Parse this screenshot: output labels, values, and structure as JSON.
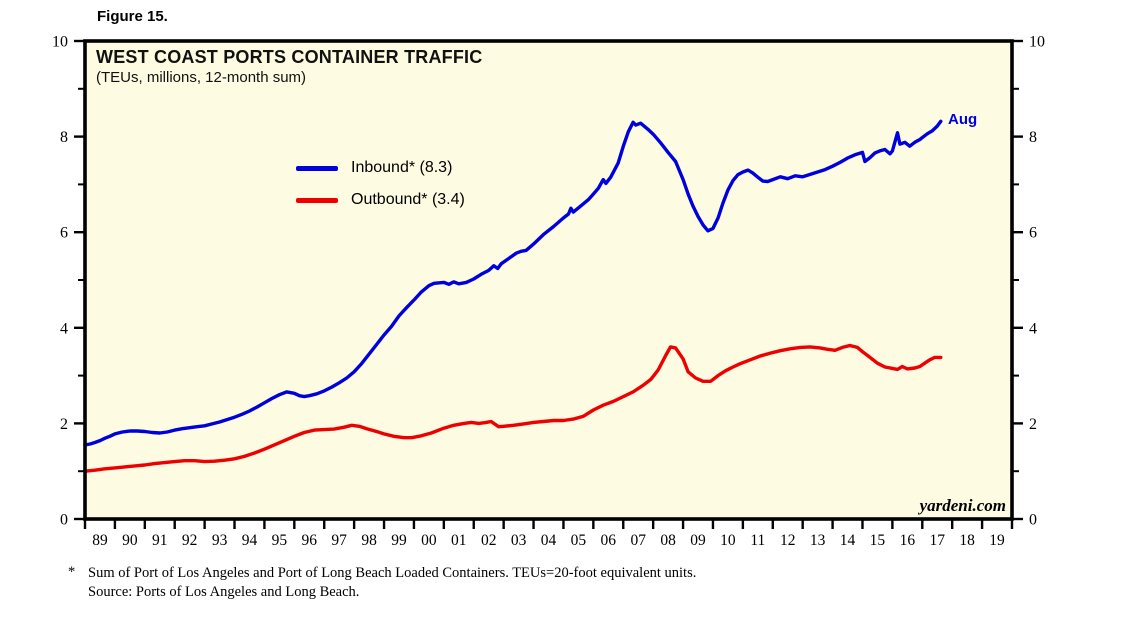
{
  "figure_label": "Figure 15.",
  "chart": {
    "title": "WEST COAST PORTS CONTAINER TRAFFIC",
    "subtitle": "(TEUs, millions, 12-month sum)",
    "last_point_label": "Aug",
    "watermark": "yardeni.com",
    "plot_bg_color": "#FDFCE2",
    "border_color": "#000000"
  },
  "legend": [
    {
      "label": "Inbound* (8.3)",
      "color": "#0000DD"
    },
    {
      "label": "Outbound* (3.4)",
      "color": "#EE0000"
    }
  ],
  "footnote": {
    "marker": "*",
    "line1": "Sum of Port of Los Angeles and Port of Long Beach Loaded Containers. TEUs=20-foot equivalent units.",
    "line2": "Source: Ports of Los Angeles and Long Beach."
  },
  "chart_data": {
    "type": "line",
    "title": "WEST COAST PORTS CONTAINER TRAFFIC",
    "subtitle": "(TEUs, millions, 12-month sum)",
    "xlabel": "",
    "ylabel": "TEUs, millions, 12-month sum",
    "xlim": [
      1989,
      2020
    ],
    "ylim": [
      0,
      10
    ],
    "grid": false,
    "legend_position": "upper-left-inside",
    "y_major_ticks": [
      0,
      2,
      4,
      6,
      8,
      10
    ],
    "y_minor_ticks": [
      1,
      3,
      5,
      7,
      9
    ],
    "x_ticklabels": [
      "89",
      "90",
      "91",
      "92",
      "93",
      "94",
      "95",
      "96",
      "97",
      "98",
      "99",
      "00",
      "01",
      "02",
      "03",
      "04",
      "05",
      "06",
      "07",
      "08",
      "09",
      "10",
      "11",
      "12",
      "13",
      "14",
      "15",
      "16",
      "17",
      "18",
      "19"
    ],
    "series": [
      {
        "name": "Inbound*",
        "current_value": 8.3,
        "current_period": "Aug 2017",
        "color": "#0000DD",
        "points": [
          [
            1989.0,
            1.55
          ],
          [
            1989.17,
            1.57
          ],
          [
            1989.33,
            1.6
          ],
          [
            1989.5,
            1.64
          ],
          [
            1989.67,
            1.69
          ],
          [
            1989.83,
            1.73
          ],
          [
            1990.0,
            1.78
          ],
          [
            1990.25,
            1.82
          ],
          [
            1990.5,
            1.84
          ],
          [
            1990.75,
            1.84
          ],
          [
            1991.0,
            1.83
          ],
          [
            1991.25,
            1.81
          ],
          [
            1991.5,
            1.8
          ],
          [
            1991.75,
            1.82
          ],
          [
            1992.0,
            1.86
          ],
          [
            1992.25,
            1.89
          ],
          [
            1992.5,
            1.91
          ],
          [
            1992.75,
            1.93
          ],
          [
            1993.0,
            1.95
          ],
          [
            1993.25,
            1.99
          ],
          [
            1993.5,
            2.03
          ],
          [
            1993.75,
            2.08
          ],
          [
            1994.0,
            2.13
          ],
          [
            1994.25,
            2.19
          ],
          [
            1994.5,
            2.26
          ],
          [
            1994.75,
            2.34
          ],
          [
            1995.0,
            2.43
          ],
          [
            1995.25,
            2.52
          ],
          [
            1995.5,
            2.6
          ],
          [
            1995.75,
            2.66
          ],
          [
            1996.0,
            2.63
          ],
          [
            1996.17,
            2.58
          ],
          [
            1996.33,
            2.56
          ],
          [
            1996.5,
            2.58
          ],
          [
            1996.75,
            2.62
          ],
          [
            1997.0,
            2.68
          ],
          [
            1997.25,
            2.76
          ],
          [
            1997.5,
            2.85
          ],
          [
            1997.75,
            2.95
          ],
          [
            1998.0,
            3.08
          ],
          [
            1998.25,
            3.25
          ],
          [
            1998.5,
            3.45
          ],
          [
            1998.75,
            3.65
          ],
          [
            1999.0,
            3.85
          ],
          [
            1999.25,
            4.03
          ],
          [
            1999.5,
            4.25
          ],
          [
            1999.75,
            4.42
          ],
          [
            2000.0,
            4.58
          ],
          [
            2000.25,
            4.75
          ],
          [
            2000.5,
            4.88
          ],
          [
            2000.67,
            4.93
          ],
          [
            2001.0,
            4.95
          ],
          [
            2001.17,
            4.91
          ],
          [
            2001.33,
            4.96
          ],
          [
            2001.5,
            4.92
          ],
          [
            2001.75,
            4.95
          ],
          [
            2002.0,
            5.02
          ],
          [
            2002.25,
            5.12
          ],
          [
            2002.5,
            5.2
          ],
          [
            2002.67,
            5.3
          ],
          [
            2002.8,
            5.24
          ],
          [
            2002.92,
            5.34
          ],
          [
            2003.17,
            5.45
          ],
          [
            2003.42,
            5.56
          ],
          [
            2003.58,
            5.6
          ],
          [
            2003.75,
            5.62
          ],
          [
            2004.0,
            5.75
          ],
          [
            2004.33,
            5.95
          ],
          [
            2004.67,
            6.12
          ],
          [
            2005.0,
            6.3
          ],
          [
            2005.17,
            6.38
          ],
          [
            2005.25,
            6.5
          ],
          [
            2005.33,
            6.42
          ],
          [
            2005.58,
            6.55
          ],
          [
            2005.83,
            6.68
          ],
          [
            2006.0,
            6.8
          ],
          [
            2006.17,
            6.92
          ],
          [
            2006.33,
            7.1
          ],
          [
            2006.42,
            7.02
          ],
          [
            2006.58,
            7.15
          ],
          [
            2006.83,
            7.45
          ],
          [
            2007.0,
            7.8
          ],
          [
            2007.17,
            8.1
          ],
          [
            2007.33,
            8.3
          ],
          [
            2007.42,
            8.24
          ],
          [
            2007.58,
            8.28
          ],
          [
            2007.83,
            8.15
          ],
          [
            2008.0,
            8.05
          ],
          [
            2008.25,
            7.87
          ],
          [
            2008.5,
            7.67
          ],
          [
            2008.75,
            7.48
          ],
          [
            2009.0,
            7.1
          ],
          [
            2009.17,
            6.8
          ],
          [
            2009.33,
            6.55
          ],
          [
            2009.5,
            6.33
          ],
          [
            2009.67,
            6.15
          ],
          [
            2009.83,
            6.03
          ],
          [
            2010.0,
            6.08
          ],
          [
            2010.17,
            6.3
          ],
          [
            2010.33,
            6.6
          ],
          [
            2010.5,
            6.88
          ],
          [
            2010.67,
            7.08
          ],
          [
            2010.83,
            7.2
          ],
          [
            2011.0,
            7.26
          ],
          [
            2011.17,
            7.3
          ],
          [
            2011.33,
            7.24
          ],
          [
            2011.5,
            7.15
          ],
          [
            2011.67,
            7.07
          ],
          [
            2011.83,
            7.06
          ],
          [
            2012.0,
            7.1
          ],
          [
            2012.25,
            7.16
          ],
          [
            2012.5,
            7.12
          ],
          [
            2012.75,
            7.18
          ],
          [
            2013.0,
            7.16
          ],
          [
            2013.25,
            7.21
          ],
          [
            2013.5,
            7.26
          ],
          [
            2013.75,
            7.31
          ],
          [
            2014.0,
            7.38
          ],
          [
            2014.25,
            7.46
          ],
          [
            2014.5,
            7.55
          ],
          [
            2014.75,
            7.62
          ],
          [
            2015.0,
            7.67
          ],
          [
            2015.08,
            7.48
          ],
          [
            2015.25,
            7.56
          ],
          [
            2015.42,
            7.66
          ],
          [
            2015.58,
            7.7
          ],
          [
            2015.75,
            7.73
          ],
          [
            2015.92,
            7.64
          ],
          [
            2016.0,
            7.7
          ],
          [
            2016.17,
            8.08
          ],
          [
            2016.25,
            7.84
          ],
          [
            2016.42,
            7.88
          ],
          [
            2016.58,
            7.8
          ],
          [
            2016.75,
            7.88
          ],
          [
            2016.92,
            7.94
          ],
          [
            2017.0,
            7.98
          ],
          [
            2017.17,
            8.06
          ],
          [
            2017.33,
            8.12
          ],
          [
            2017.5,
            8.22
          ],
          [
            2017.62,
            8.32
          ]
        ]
      },
      {
        "name": "Outbound*",
        "current_value": 3.4,
        "current_period": "Aug 2017",
        "color": "#EE0000",
        "points": [
          [
            1989.0,
            1.0
          ],
          [
            1989.33,
            1.02
          ],
          [
            1989.67,
            1.05
          ],
          [
            1990.0,
            1.07
          ],
          [
            1990.33,
            1.09
          ],
          [
            1990.67,
            1.11
          ],
          [
            1991.0,
            1.13
          ],
          [
            1991.33,
            1.16
          ],
          [
            1991.67,
            1.18
          ],
          [
            1992.0,
            1.2
          ],
          [
            1992.33,
            1.22
          ],
          [
            1992.67,
            1.22
          ],
          [
            1993.0,
            1.2
          ],
          [
            1993.33,
            1.21
          ],
          [
            1993.67,
            1.23
          ],
          [
            1994.0,
            1.26
          ],
          [
            1994.33,
            1.31
          ],
          [
            1994.67,
            1.38
          ],
          [
            1995.0,
            1.46
          ],
          [
            1995.33,
            1.55
          ],
          [
            1995.67,
            1.64
          ],
          [
            1996.0,
            1.73
          ],
          [
            1996.33,
            1.81
          ],
          [
            1996.67,
            1.86
          ],
          [
            1997.0,
            1.87
          ],
          [
            1997.33,
            1.88
          ],
          [
            1997.67,
            1.92
          ],
          [
            1997.92,
            1.96
          ],
          [
            1998.17,
            1.94
          ],
          [
            1998.42,
            1.89
          ],
          [
            1998.75,
            1.83
          ],
          [
            1999.0,
            1.78
          ],
          [
            1999.33,
            1.73
          ],
          [
            1999.67,
            1.7
          ],
          [
            1999.92,
            1.7
          ],
          [
            2000.25,
            1.74
          ],
          [
            2000.58,
            1.8
          ],
          [
            2001.0,
            1.9
          ],
          [
            2001.33,
            1.96
          ],
          [
            2001.67,
            2.0
          ],
          [
            2001.92,
            2.02
          ],
          [
            2002.17,
            2.0
          ],
          [
            2002.42,
            2.02
          ],
          [
            2002.58,
            2.04
          ],
          [
            2002.83,
            1.93
          ],
          [
            2003.0,
            1.94
          ],
          [
            2003.33,
            1.96
          ],
          [
            2003.67,
            1.99
          ],
          [
            2004.0,
            2.02
          ],
          [
            2004.33,
            2.04
          ],
          [
            2004.67,
            2.06
          ],
          [
            2005.0,
            2.06
          ],
          [
            2005.33,
            2.09
          ],
          [
            2005.67,
            2.15
          ],
          [
            2006.0,
            2.28
          ],
          [
            2006.33,
            2.38
          ],
          [
            2006.67,
            2.46
          ],
          [
            2007.0,
            2.56
          ],
          [
            2007.33,
            2.66
          ],
          [
            2007.67,
            2.8
          ],
          [
            2007.92,
            2.92
          ],
          [
            2008.17,
            3.12
          ],
          [
            2008.42,
            3.42
          ],
          [
            2008.58,
            3.6
          ],
          [
            2008.75,
            3.58
          ],
          [
            2009.0,
            3.35
          ],
          [
            2009.17,
            3.08
          ],
          [
            2009.42,
            2.95
          ],
          [
            2009.67,
            2.88
          ],
          [
            2009.92,
            2.88
          ],
          [
            2010.17,
            3.0
          ],
          [
            2010.42,
            3.1
          ],
          [
            2010.67,
            3.18
          ],
          [
            2010.92,
            3.25
          ],
          [
            2011.25,
            3.33
          ],
          [
            2011.58,
            3.41
          ],
          [
            2011.92,
            3.47
          ],
          [
            2012.25,
            3.52
          ],
          [
            2012.58,
            3.56
          ],
          [
            2012.92,
            3.59
          ],
          [
            2013.25,
            3.6
          ],
          [
            2013.58,
            3.58
          ],
          [
            2013.83,
            3.55
          ],
          [
            2014.08,
            3.53
          ],
          [
            2014.33,
            3.59
          ],
          [
            2014.58,
            3.63
          ],
          [
            2014.83,
            3.59
          ],
          [
            2015.0,
            3.5
          ],
          [
            2015.25,
            3.38
          ],
          [
            2015.5,
            3.26
          ],
          [
            2015.75,
            3.18
          ],
          [
            2016.0,
            3.15
          ],
          [
            2016.17,
            3.13
          ],
          [
            2016.33,
            3.19
          ],
          [
            2016.5,
            3.14
          ],
          [
            2016.75,
            3.16
          ],
          [
            2016.92,
            3.19
          ],
          [
            2017.08,
            3.26
          ],
          [
            2017.25,
            3.33
          ],
          [
            2017.42,
            3.38
          ],
          [
            2017.62,
            3.38
          ]
        ]
      }
    ]
  }
}
